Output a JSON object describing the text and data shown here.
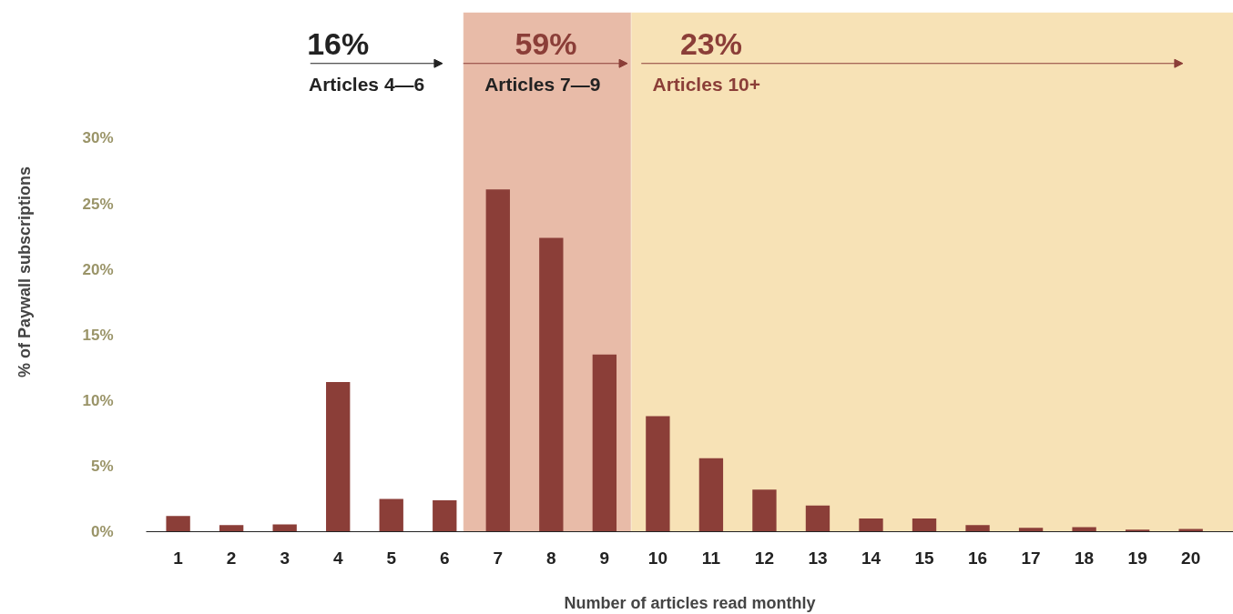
{
  "chart_data": {
    "type": "bar",
    "xlabel": "Number of articles read monthly",
    "ylabel": "% of Paywall subscriptions",
    "x": [
      1,
      2,
      3,
      4,
      5,
      6,
      7,
      8,
      9,
      10,
      11,
      12,
      13,
      14,
      15,
      16,
      17,
      18,
      19,
      20
    ],
    "values": [
      1.2,
      0.5,
      0.55,
      11.4,
      2.5,
      2.4,
      26.1,
      22.4,
      13.5,
      8.8,
      5.6,
      3.2,
      2.0,
      1.0,
      1.0,
      0.5,
      0.3,
      0.35,
      0.15,
      0.2
    ],
    "color": "#8b3e38",
    "xlim": [
      0.4,
      20.8
    ],
    "xticks": [
      1,
      2,
      3,
      4,
      5,
      6,
      7,
      8,
      9,
      10,
      11,
      12,
      13,
      14,
      15,
      16,
      17,
      18,
      19,
      20
    ],
    "ylim": [
      0,
      39.6
    ],
    "yticks": [
      {
        "value": 0,
        "label": "0%"
      },
      {
        "value": 5,
        "label": "5%"
      },
      {
        "value": 10,
        "label": "10%"
      },
      {
        "value": 15,
        "label": "15%"
      },
      {
        "value": 20,
        "label": "20%"
      },
      {
        "value": 25,
        "label": "25%"
      },
      {
        "value": 30,
        "label": "30%"
      }
    ],
    "bands": [
      {
        "axis": "x",
        "from": 6.35,
        "to": 9.5,
        "label": "Articles 7—9",
        "color": "#e8bba8"
      },
      {
        "axis": "x",
        "from": 9.5,
        "to": 20.8,
        "label": "Articles 10+",
        "color": "#f7e2b6"
      }
    ],
    "annotations": [
      "16%",
      "Articles 4—6",
      "59%",
      "23%"
    ],
    "grid": false
  }
}
